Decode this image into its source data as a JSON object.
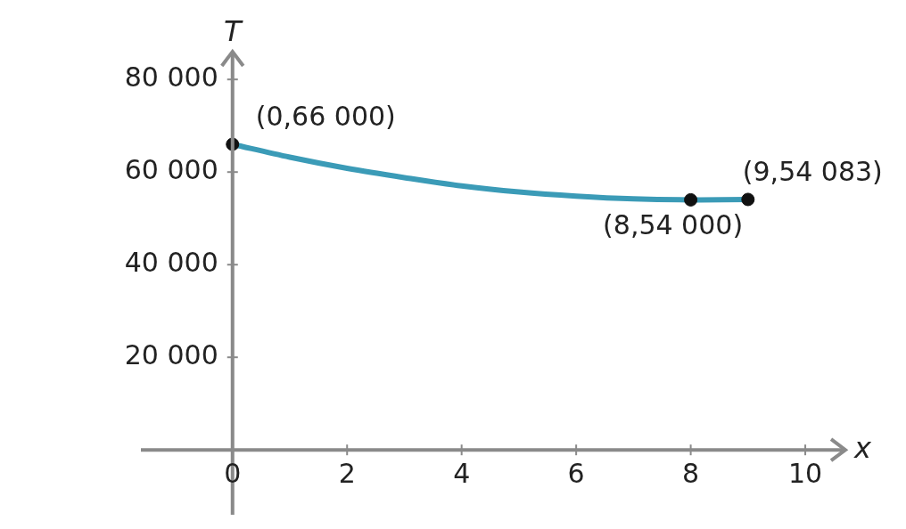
{
  "chart_data": {
    "type": "line",
    "xlabel": "x",
    "ylabel": "T",
    "xlim": [
      -1.6,
      10.7
    ],
    "ylim": [
      -14000,
      86000
    ],
    "xticks": [
      0,
      2,
      4,
      6,
      8,
      10
    ],
    "yticks": [
      {
        "value": 20000,
        "label": "20 000"
      },
      {
        "value": 40000,
        "label": "40 000"
      },
      {
        "value": 60000,
        "label": "60 000"
      },
      {
        "value": 80000,
        "label": "80 000"
      }
    ],
    "grid": false,
    "legend": false,
    "series": [
      {
        "marker": "none",
        "color": "#3b9bb7",
        "x": [
          0,
          1,
          2,
          3,
          4,
          5,
          6,
          7,
          8,
          9
        ],
        "values": [
          66000,
          63200,
          60800,
          58800,
          57000,
          55700,
          54800,
          54200,
          54000,
          54083
        ]
      },
      {
        "type": "scatter",
        "marker": "circle",
        "color": "#111111",
        "x": [
          0,
          8,
          9
        ],
        "values": [
          66000,
          54000,
          54083
        ]
      }
    ],
    "annotations": [
      {
        "text": "(0,66 000)",
        "x": 0,
        "y": 66000
      },
      {
        "text": "(8,54 000)",
        "x": 8,
        "y": 54000
      },
      {
        "text": "(9,54 083)",
        "x": 9,
        "y": 54083
      }
    ]
  }
}
